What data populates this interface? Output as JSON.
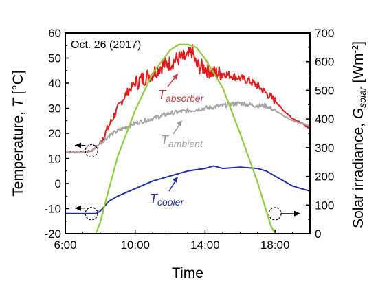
{
  "chart_data": {
    "type": "line",
    "title": "",
    "annotation": "Oct. 26 (2017)",
    "xlabel": "Time",
    "ylabel_left": {
      "base": "Temperature, ",
      "var": "T",
      "unit": " [°C]"
    },
    "ylabel_right": {
      "base": "Solar irradiance, ",
      "var": "G",
      "sub": "solar",
      "unit": " [Wm",
      "sup": "-2",
      "close": "]"
    },
    "xlim": [
      "6:00",
      "20:00"
    ],
    "ylim_left": [
      -20,
      60
    ],
    "ylim_right": [
      0,
      700
    ],
    "grid": false,
    "x_ticks": [
      "6:00",
      "10:00",
      "14:00",
      "18:00"
    ],
    "y_ticks_left": [
      -20,
      -10,
      0,
      10,
      20,
      30,
      40,
      50,
      60
    ],
    "y_ticks_right": [
      0,
      100,
      200,
      300,
      400,
      500,
      600,
      700
    ],
    "colors": {
      "absorber": "#e41a1c",
      "ambient": "#a6a6a6",
      "cooler": "#1f2fa8",
      "solar": "#8ccd3f"
    },
    "series": [
      {
        "name": "T absorber",
        "var": "T",
        "sub": "absorber",
        "axis": "left",
        "color": "#e41a1c",
        "noisy": true,
        "points": [
          [
            "6:00",
            12.5
          ],
          [
            "7:00",
            12.5
          ],
          [
            "7:30",
            13
          ],
          [
            "8:00",
            16
          ],
          [
            "8:30",
            23
          ],
          [
            "9:00",
            30
          ],
          [
            "9:30",
            36
          ],
          [
            "10:00",
            40
          ],
          [
            "10:30",
            42
          ],
          [
            "11:00",
            44
          ],
          [
            "11:30",
            47
          ],
          [
            "12:00",
            48
          ],
          [
            "12:30",
            50
          ],
          [
            "13:00",
            50
          ],
          [
            "13:15",
            53
          ],
          [
            "13:30",
            47
          ],
          [
            "14:00",
            46
          ],
          [
            "14:30",
            44
          ],
          [
            "15:00",
            44
          ],
          [
            "15:30",
            43
          ],
          [
            "16:00",
            42
          ],
          [
            "16:30",
            41
          ],
          [
            "17:00",
            39
          ],
          [
            "17:30",
            36
          ],
          [
            "18:00",
            33
          ],
          [
            "18:30",
            29
          ],
          [
            "19:00",
            26
          ],
          [
            "19:30",
            24
          ],
          [
            "20:00",
            22
          ]
        ]
      },
      {
        "name": "T ambient",
        "var": "T",
        "sub": "ambient",
        "axis": "left",
        "color": "#a6a6a6",
        "noisy": true,
        "points": [
          [
            "6:00",
            12.5
          ],
          [
            "7:00",
            12.5
          ],
          [
            "7:30",
            13
          ],
          [
            "8:00",
            16
          ],
          [
            "8:30",
            19
          ],
          [
            "9:00",
            21
          ],
          [
            "10:00",
            24
          ],
          [
            "11:00",
            26
          ],
          [
            "12:00",
            28
          ],
          [
            "13:00",
            29
          ],
          [
            "14:00",
            30
          ],
          [
            "15:00",
            31
          ],
          [
            "16:00",
            32
          ],
          [
            "17:00",
            31
          ],
          [
            "17:30",
            31
          ],
          [
            "18:00",
            29
          ],
          [
            "18:30",
            27
          ],
          [
            "19:00",
            25
          ],
          [
            "19:30",
            24
          ],
          [
            "20:00",
            23
          ]
        ]
      },
      {
        "name": "T cooler",
        "var": "T",
        "sub": "cooler",
        "axis": "left",
        "color": "#1f2fa8",
        "noisy": false,
        "points": [
          [
            "6:00",
            -12
          ],
          [
            "7:00",
            -12
          ],
          [
            "7:45",
            -12
          ],
          [
            "8:00",
            -11
          ],
          [
            "8:30",
            -7
          ],
          [
            "9:00",
            -5
          ],
          [
            "10:00",
            -2
          ],
          [
            "11:00",
            1
          ],
          [
            "12:00",
            3
          ],
          [
            "13:00",
            5
          ],
          [
            "14:00",
            6
          ],
          [
            "14:30",
            7
          ],
          [
            "15:00",
            6
          ],
          [
            "16:00",
            6.5
          ],
          [
            "17:00",
            6
          ],
          [
            "17:30",
            5
          ],
          [
            "18:00",
            3
          ],
          [
            "18:30",
            1
          ],
          [
            "19:00",
            -1
          ],
          [
            "19:30",
            -2
          ],
          [
            "20:00",
            -3
          ]
        ]
      },
      {
        "name": "G solar",
        "var": "G",
        "sub": "solar",
        "axis": "right",
        "color": "#8ccd3f",
        "noisy": false,
        "points": [
          [
            "6:00",
            0
          ],
          [
            "7:45",
            0
          ],
          [
            "8:00",
            40
          ],
          [
            "8:15",
            100
          ],
          [
            "9:00",
            270
          ],
          [
            "10:00",
            430
          ],
          [
            "11:00",
            560
          ],
          [
            "12:00",
            640
          ],
          [
            "12:30",
            660
          ],
          [
            "13:00",
            660
          ],
          [
            "13:30",
            650
          ],
          [
            "14:00",
            610
          ],
          [
            "15:00",
            510
          ],
          [
            "16:00",
            350
          ],
          [
            "17:00",
            180
          ],
          [
            "17:30",
            80
          ],
          [
            "17:45",
            30
          ],
          [
            "18:00",
            0
          ],
          [
            "20:00",
            0
          ]
        ]
      }
    ],
    "series_labels": [
      {
        "series": "T absorber",
        "var": "T",
        "sub": "absorber",
        "color": "#c23b3b"
      },
      {
        "series": "T ambient",
        "var": "T",
        "sub": "ambient",
        "color": "#9a9a9a"
      },
      {
        "series": "T cooler",
        "var": "T",
        "sub": "cooler",
        "color": "#1f2fa8"
      }
    ]
  }
}
